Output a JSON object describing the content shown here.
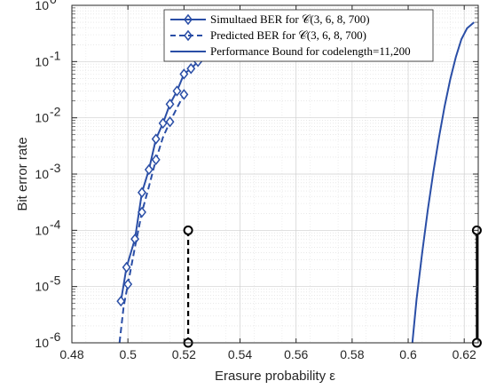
{
  "chart_data": {
    "type": "line",
    "title": "",
    "xlabel": "Erasure probability ε",
    "ylabel": "Bit error rate",
    "xlim": [
      0.48,
      0.625
    ],
    "ylim": [
      1e-06,
      1
    ],
    "yscale": "log",
    "grid": true,
    "legend_position": "top-center",
    "x_ticks": [
      0.48,
      0.5,
      0.52,
      0.54,
      0.56,
      0.58,
      0.6,
      0.62
    ],
    "x_tick_labels": [
      "0.48",
      "0.5",
      "0.52",
      "0.54",
      "0.56",
      "0.58",
      "0.6",
      "0.62"
    ],
    "y_ticks": [
      1e-06,
      1e-05,
      0.0001,
      0.001,
      0.01,
      0.1,
      1
    ],
    "y_tick_labels": [
      {
        "base": "10",
        "exp": "-6"
      },
      {
        "base": "10",
        "exp": "-5"
      },
      {
        "base": "10",
        "exp": "-4"
      },
      {
        "base": "10",
        "exp": "-3"
      },
      {
        "base": "10",
        "exp": "-2"
      },
      {
        "base": "10",
        "exp": "-1"
      },
      {
        "base": "10",
        "exp": "0"
      }
    ],
    "series": [
      {
        "name": "Simultaed BER for 𝒞(3, 6, 8, 700)",
        "color": "#2a4ea6",
        "style": "solid",
        "marker": "diamond",
        "x": [
          0.4975,
          0.4995,
          0.5025,
          0.505,
          0.5075,
          0.51,
          0.5125,
          0.515,
          0.5175,
          0.52,
          0.5225,
          0.525
        ],
        "y": [
          5.5e-06,
          2.2e-05,
          7e-05,
          0.00047,
          0.0012,
          0.0042,
          0.008,
          0.0175,
          0.03,
          0.06,
          0.075,
          0.1
        ]
      },
      {
        "name": "Predicted BER for 𝒞(3, 6, 8, 700)",
        "color": "#2a4ea6",
        "style": "dashed",
        "marker": "diamond",
        "x": [
          0.497,
          0.4985,
          0.5,
          0.5025,
          0.505,
          0.5075,
          0.51,
          0.5125,
          0.515,
          0.5175,
          0.52
        ],
        "y": [
          1e-06,
          4.5e-06,
          1.1e-05,
          5e-05,
          0.00021,
          0.0006,
          0.0018,
          0.0045,
          0.0085,
          0.015,
          0.026
        ],
        "marker_indices": [
          2,
          4,
          6,
          8,
          10
        ]
      },
      {
        "name": "Performance Bound for codelength=11,200",
        "color": "#2a4ea6",
        "style": "solid",
        "marker": "none",
        "x": [
          0.6015,
          0.603,
          0.605,
          0.607,
          0.609,
          0.611,
          0.613,
          0.615,
          0.617,
          0.619,
          0.621,
          0.6235
        ],
        "y": [
          1e-06,
          6e-06,
          4e-05,
          0.00023,
          0.0011,
          0.0045,
          0.016,
          0.048,
          0.12,
          0.25,
          0.39,
          0.5
        ]
      }
    ],
    "annotations": [
      {
        "type": "vertical-marker",
        "style": "dashed",
        "color": "#000000",
        "x": 0.5215,
        "y": [
          1e-06,
          0.0001
        ]
      },
      {
        "type": "vertical-marker",
        "style": "solid",
        "color": "#000000",
        "x": 0.6245,
        "y": [
          1e-06,
          0.0001
        ]
      }
    ]
  }
}
